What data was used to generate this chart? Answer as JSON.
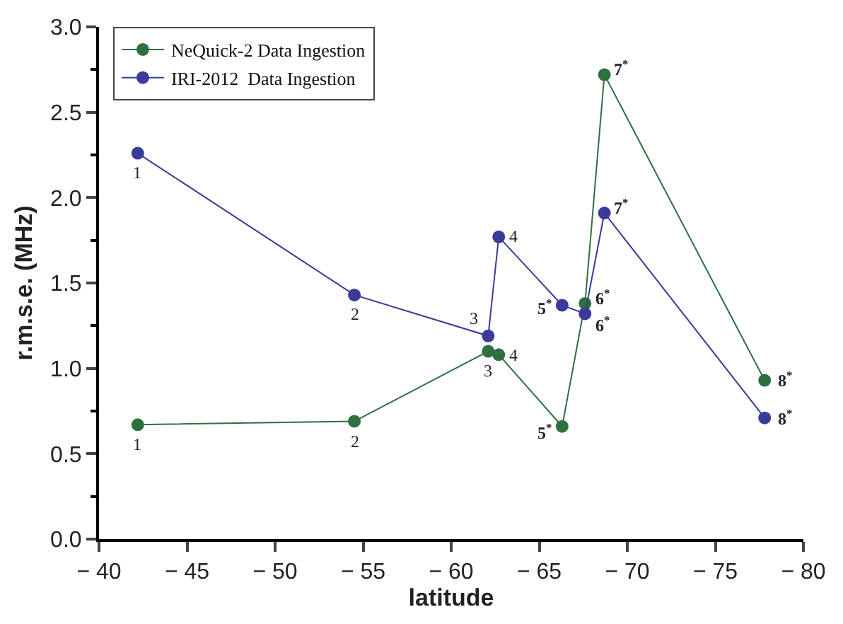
{
  "chart_data": {
    "type": "line",
    "xlabel": "latitude",
    "ylabel": "r.m.s.e. (MHz)",
    "xlim": [
      -40,
      -80
    ],
    "xticks": [
      {
        "value": -40,
        "label": "− 40"
      },
      {
        "value": -45,
        "label": "− 45"
      },
      {
        "value": -50,
        "label": "− 50"
      },
      {
        "value": -55,
        "label": "− 55"
      },
      {
        "value": -60,
        "label": "− 60"
      },
      {
        "value": -65,
        "label": "− 65"
      },
      {
        "value": -70,
        "label": "− 70"
      },
      {
        "value": -75,
        "label": "− 75"
      },
      {
        "value": -80,
        "label": "− 80"
      }
    ],
    "ylim": [
      0,
      3
    ],
    "yticks": [
      {
        "value": 0,
        "label": "0.0"
      },
      {
        "value": 0.5,
        "label": "0.5"
      },
      {
        "value": 1,
        "label": "1.0"
      },
      {
        "value": 1.5,
        "label": "1.5"
      },
      {
        "value": 2,
        "label": "2.0"
      },
      {
        "value": 2.5,
        "label": "2.5"
      },
      {
        "value": 3,
        "label": "3.0"
      }
    ],
    "legend": "top left",
    "marker": "circle",
    "line_style": "solid",
    "series": [
      {
        "name": "NeQuick-2 Data Ingestion",
        "color": "#2e7040",
        "x": [
          -42.2,
          -54.5,
          -62.1,
          -62.7,
          -66.3,
          -67.6,
          -68.7,
          -77.8
        ],
        "values": [
          0.67,
          0.69,
          1.1,
          1.08,
          0.66,
          1.38,
          2.72,
          0.93
        ]
      },
      {
        "name": "IRI-2012  Data Ingestion",
        "color": "#3a3a9a",
        "x": [
          -42.2,
          -54.5,
          -62.1,
          -62.7,
          -66.3,
          -67.6,
          -68.7,
          -77.8
        ],
        "values": [
          2.26,
          1.43,
          1.19,
          1.77,
          1.37,
          1.32,
          1.91,
          0.71
        ]
      }
    ],
    "annotations": [
      {
        "text": "1",
        "x": -42.2,
        "y": 0.67
      },
      {
        "text": "2",
        "x": -54.5,
        "y": 0.69
      },
      {
        "text": "3",
        "x": -62.1,
        "y": 1.1
      },
      {
        "text": "4",
        "x": -62.7,
        "y": 1.08
      },
      {
        "text": "5$^{*}$",
        "x": -66.3,
        "y": 0.66
      },
      {
        "text": "6$^{*}$",
        "x": -67.6,
        "y": 1.38
      },
      {
        "text": "7$^{*}$",
        "x": -68.7,
        "y": 2.72
      },
      {
        "text": "8$^{*}$",
        "x": -77.8,
        "y": 0.93
      },
      {
        "text": "1",
        "x": -42.2,
        "y": 2.26
      },
      {
        "text": "2",
        "x": -54.5,
        "y": 1.43
      },
      {
        "text": "3",
        "x": -62.1,
        "y": 1.19
      },
      {
        "text": "4",
        "x": -62.7,
        "y": 1.77
      },
      {
        "text": "5$^{*}$",
        "x": -66.3,
        "y": 1.37
      },
      {
        "text": "6$^{*}$",
        "x": -67.6,
        "y": 1.32
      },
      {
        "text": "7$^{*}$",
        "x": -68.7,
        "y": 1.91
      },
      {
        "text": "8$^{*}$",
        "x": -77.8,
        "y": 0.71
      }
    ]
  }
}
